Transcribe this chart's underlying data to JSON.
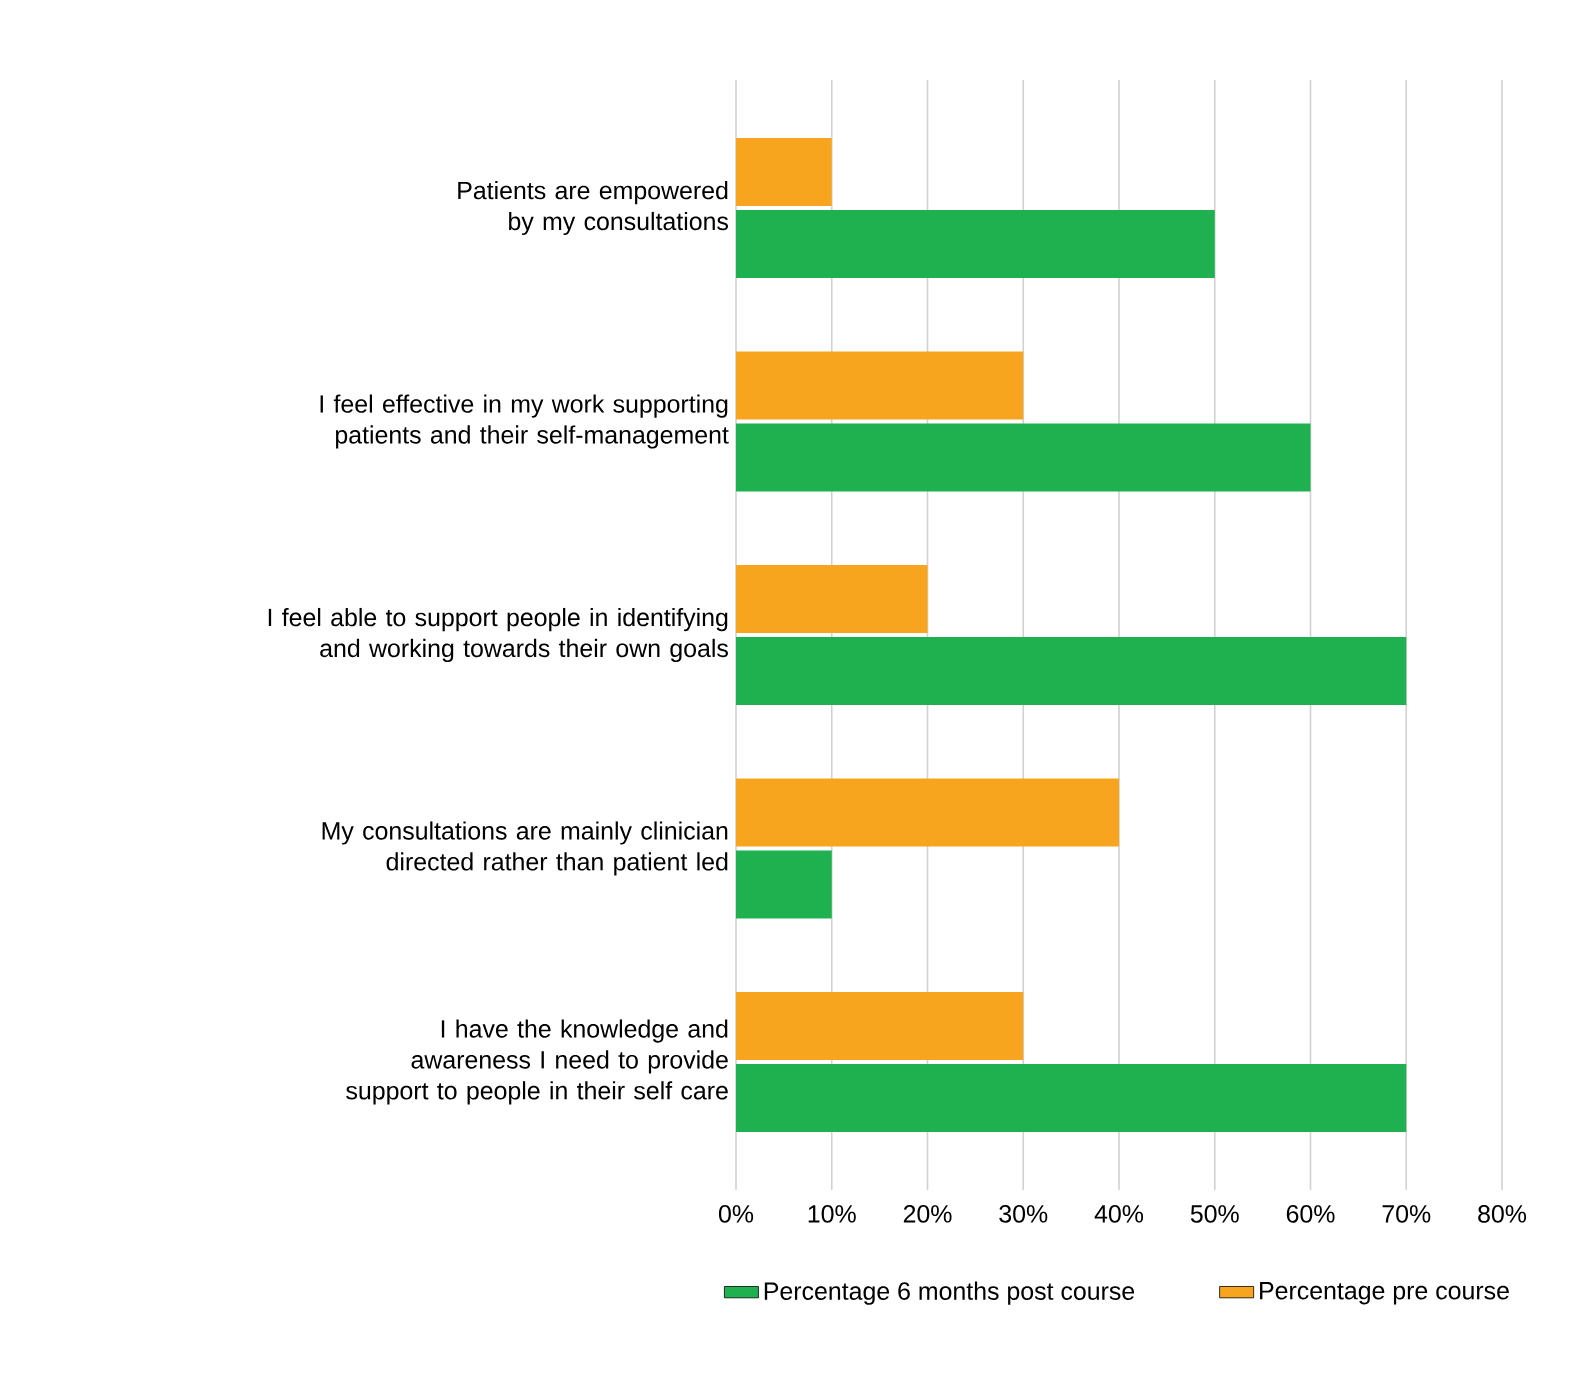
{
  "chart_data": {
    "type": "bar",
    "orientation": "horizontal",
    "categories": [
      "Patients are empowered by my consultations",
      "I feel effective in my work supporting patients and their self-management",
      "I feel able to support people in identifying and working towards their own goals",
      "My consultations are mainly clinician directed rather than patient led",
      "I have the knowledge and awareness I need to provide support to people in their self care"
    ],
    "series": [
      {
        "name": "Percentage 6 months post course",
        "color": "#1fb14f",
        "values": [
          50,
          60,
          70,
          10,
          70
        ]
      },
      {
        "name": "Percentage pre course",
        "color": "#f7a51f",
        "values": [
          10,
          30,
          20,
          40,
          30
        ]
      }
    ],
    "xlim": [
      0,
      80
    ],
    "xticks": [
      {
        "value": 0,
        "label": "0%"
      },
      {
        "value": 10,
        "label": "10%"
      },
      {
        "value": 20,
        "label": "20%"
      },
      {
        "value": 30,
        "label": "30%"
      },
      {
        "value": 40,
        "label": "40%"
      },
      {
        "value": 50,
        "label": "50%"
      },
      {
        "value": 60,
        "label": "60%"
      },
      {
        "value": 70,
        "label": "70%"
      },
      {
        "value": 80,
        "label": "80%"
      }
    ],
    "grid": "x",
    "legend": "bottom"
  }
}
